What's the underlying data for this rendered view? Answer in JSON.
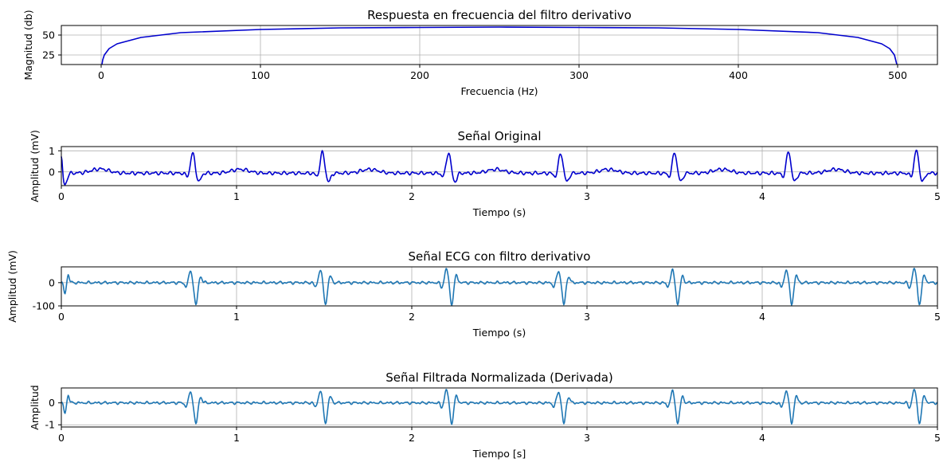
{
  "chart_data": [
    {
      "type": "line",
      "title": "Respuesta en frecuencia del filtro derivativo",
      "xlabel": "Frecuencia (Hz)",
      "ylabel": "Magnitud (db)",
      "xlim": [
        -25,
        525
      ],
      "ylim": [
        13,
        62
      ],
      "xticks": [
        0,
        100,
        200,
        300,
        400,
        500
      ],
      "yticks": [
        25,
        50
      ],
      "grid": true,
      "color": "#0000cd",
      "series": [
        {
          "x": [
            0.5,
            1,
            2,
            5,
            10,
            25,
            50,
            100,
            150,
            200,
            250,
            300,
            350,
            400,
            450,
            475,
            490,
            495,
            498,
            499.5
          ],
          "values": [
            13,
            19,
            25,
            33,
            39,
            47,
            53,
            57,
            59,
            59.5,
            60,
            59.5,
            59,
            57,
            53,
            47,
            39,
            33,
            25,
            13
          ]
        }
      ]
    },
    {
      "type": "line",
      "title": "Señal Original",
      "xlabel": "Tiempo (s)",
      "ylabel": "Amplitud (mV)",
      "xlim": [
        0,
        5
      ],
      "ylim": [
        -0.65,
        1.2
      ],
      "xticks": [
        0,
        1,
        2,
        3,
        4,
        5
      ],
      "yticks": [
        0,
        1
      ],
      "grid": true,
      "color": "#0000cd",
      "beats_s": [
        0.75,
        1.49,
        2.21,
        2.85,
        3.5,
        4.15,
        4.88
      ],
      "peak_values": [
        0.95,
        1.0,
        1.0,
        0.95,
        0.98,
        1.02,
        1.08
      ]
    },
    {
      "type": "line",
      "title": "Señal ECG con filtro derivativo",
      "xlabel": "Tiempo (s)",
      "ylabel": "Amplitud (mV)",
      "xlim": [
        0,
        5
      ],
      "ylim": [
        -100,
        68
      ],
      "xticks": [
        0,
        1,
        2,
        3,
        4,
        5
      ],
      "yticks": [
        -100,
        0
      ],
      "grid": true,
      "color": "#1f77b4",
      "beats_s": [
        0.75,
        1.49,
        2.21,
        2.85,
        3.5,
        4.15,
        4.88
      ],
      "peak_values": [
        50,
        55,
        60,
        52,
        53,
        58,
        62
      ],
      "trough_values": [
        -98,
        -92,
        -93,
        -95,
        -94,
        -93,
        -92
      ]
    },
    {
      "type": "line",
      "title": "Señal Filtrada Normalizada (Derivada)",
      "xlabel": "Tiempo [s]",
      "ylabel": "Amplitud",
      "xlim": [
        0,
        5
      ],
      "ylim": [
        -1.1,
        0.68
      ],
      "xticks": [
        0,
        1,
        2,
        3,
        4,
        5
      ],
      "yticks": [
        -1,
        0
      ],
      "grid": true,
      "color": "#1f77b4",
      "beats_s": [
        0.75,
        1.49,
        2.21,
        2.85,
        3.5,
        4.15,
        4.88
      ],
      "peak_values": [
        0.5,
        0.55,
        0.6,
        0.52,
        0.53,
        0.58,
        0.62
      ],
      "trough_values": [
        -0.98,
        -0.92,
        -0.93,
        -0.95,
        -0.94,
        -0.93,
        -0.92
      ]
    }
  ]
}
